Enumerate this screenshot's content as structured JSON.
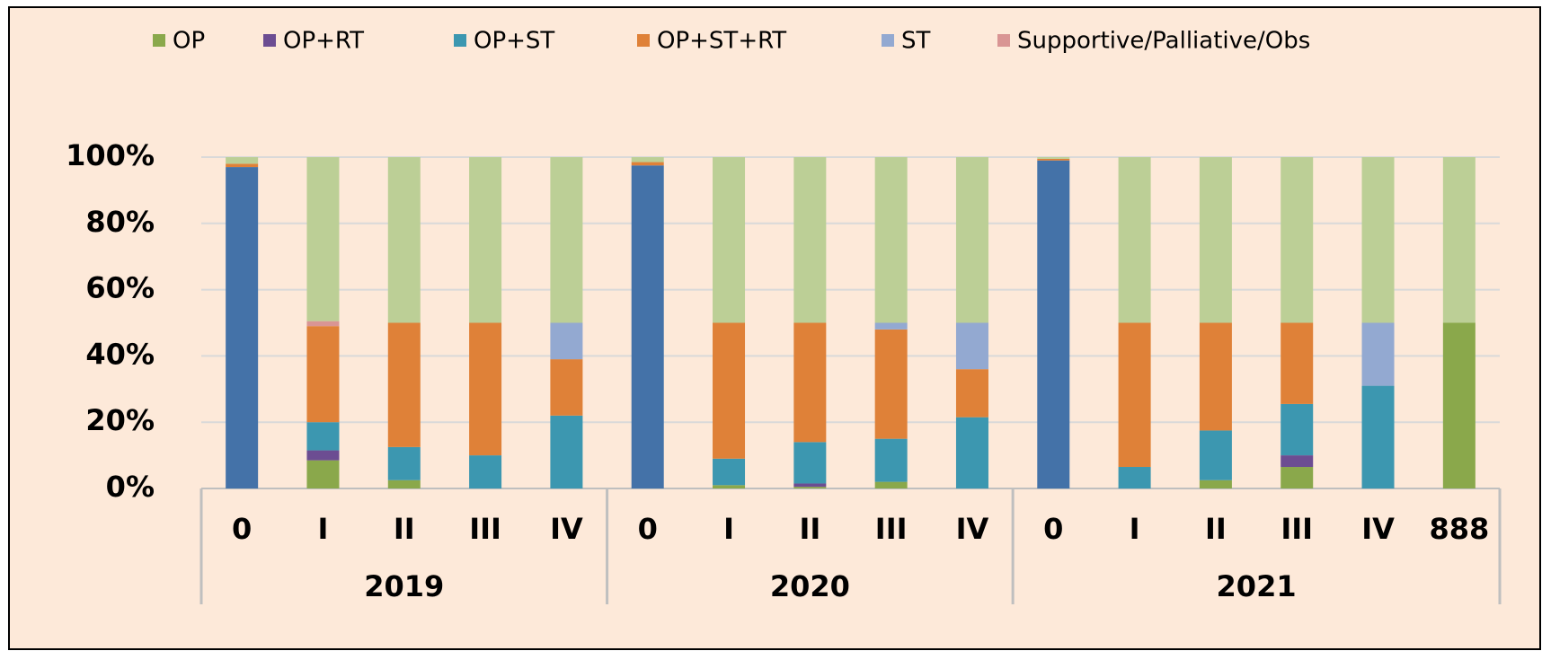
{
  "chart_data": {
    "type": "stacked_bar",
    "groups": [
      {
        "name": "2019",
        "categories": [
          "0",
          "I",
          "II",
          "III",
          "IV"
        ]
      },
      {
        "name": "2020",
        "categories": [
          "0",
          "I",
          "II",
          "III",
          "IV"
        ]
      },
      {
        "name": "2021",
        "categories": [
          "0",
          "I",
          "II",
          "III",
          "IV",
          "888"
        ]
      }
    ],
    "series": [
      {
        "color": "#4472a8",
        "values": [
          97,
          0,
          0,
          0,
          0,
          97.5,
          0,
          0,
          0,
          0,
          99,
          0,
          0,
          0,
          0,
          0
        ]
      },
      {
        "name": "OP",
        "color": "#8aa84b",
        "values": [
          0,
          8.5,
          2.5,
          0,
          0,
          0,
          1,
          0.5,
          2,
          0,
          0,
          0,
          2.5,
          6.5,
          0,
          50
        ]
      },
      {
        "name": "OP+RT",
        "color": "#6c4d92",
        "values": [
          0,
          3,
          0,
          0,
          0,
          0,
          0,
          1,
          0,
          0,
          0,
          0,
          0,
          3.5,
          0,
          0
        ]
      },
      {
        "name": "OP+ST",
        "color": "#3c97b0",
        "values": [
          0,
          8.5,
          10,
          10,
          22,
          0,
          8,
          12.5,
          13,
          21.5,
          0,
          6.5,
          15,
          15.5,
          31,
          0
        ]
      },
      {
        "name": "OP+ST+RT",
        "color": "#df8138",
        "values": [
          1,
          29,
          37.5,
          40,
          17,
          1,
          41,
          36,
          33,
          14.5,
          0.5,
          43.5,
          32.5,
          24.5,
          0,
          0
        ]
      },
      {
        "name": "ST",
        "color": "#93a9d1",
        "values": [
          0,
          0,
          0,
          0,
          11,
          0,
          0,
          0,
          2,
          14,
          0,
          0,
          0,
          0,
          19,
          0
        ]
      },
      {
        "name": "Supportive/Palliative/Obs",
        "color": "#d99594",
        "values": [
          0,
          1.5,
          0,
          0,
          0,
          0,
          0,
          0,
          0,
          0,
          0,
          0,
          0,
          0,
          0,
          0
        ]
      },
      {
        "color": "#bccf96",
        "values": [
          2,
          49.5,
          50,
          50,
          50,
          1.5,
          50,
          50,
          50,
          50,
          0.5,
          50,
          50,
          50,
          50,
          50
        ]
      }
    ],
    "ylim": [
      0,
      100
    ],
    "yticks": [
      {
        "value": 0,
        "label": "0%"
      },
      {
        "value": 20,
        "label": "20%"
      },
      {
        "value": 40,
        "label": "40%"
      },
      {
        "value": 60,
        "label": "60%"
      },
      {
        "value": 80,
        "label": "80%"
      },
      {
        "value": 100,
        "label": "100%"
      }
    ],
    "grid": true,
    "legend": "top"
  }
}
